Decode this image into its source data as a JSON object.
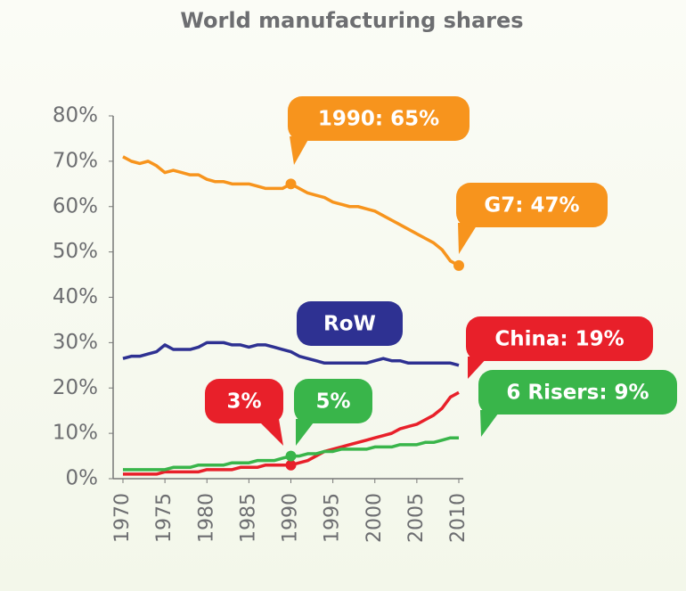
{
  "chart_data": {
    "type": "line",
    "title": "World manufacturing shares",
    "x": [
      1970,
      1971,
      1972,
      1973,
      1974,
      1975,
      1976,
      1977,
      1978,
      1979,
      1980,
      1981,
      1982,
      1983,
      1984,
      1985,
      1986,
      1987,
      1988,
      1989,
      1990,
      1991,
      1992,
      1993,
      1994,
      1995,
      1996,
      1997,
      1998,
      1999,
      2000,
      2001,
      2002,
      2003,
      2004,
      2005,
      2006,
      2007,
      2008,
      2009,
      2010
    ],
    "xlim": [
      1970,
      2010
    ],
    "xticks": [
      1970,
      1975,
      1980,
      1985,
      1990,
      1995,
      2000,
      2005,
      2010
    ],
    "ylim": [
      0,
      80
    ],
    "yticks": [
      {
        "value": 0,
        "label": "0%"
      },
      {
        "value": 10,
        "label": "10%"
      },
      {
        "value": 20,
        "label": "20%"
      },
      {
        "value": 30,
        "label": "30%"
      },
      {
        "value": 40,
        "label": "40%"
      },
      {
        "value": 50,
        "label": "50%"
      },
      {
        "value": 60,
        "label": "60%"
      },
      {
        "value": 70,
        "label": "70%"
      },
      {
        "value": 80,
        "label": "80%"
      }
    ],
    "grid": false,
    "series": [
      {
        "color": "#f7941d",
        "values": [
          71,
          70,
          69.5,
          70,
          69,
          67.5,
          68,
          67.5,
          67,
          67,
          66,
          65.5,
          65.5,
          65,
          65,
          65,
          64.5,
          64,
          64,
          64,
          65,
          64,
          63,
          62.5,
          62,
          61,
          60.5,
          60,
          60,
          59.5,
          59,
          58,
          57,
          56,
          55,
          54,
          53,
          52,
          50.5,
          48,
          47
        ]
      },
      {
        "color": "#2e3192",
        "values": [
          26.5,
          27,
          27,
          27.5,
          28,
          29.5,
          28.5,
          28.5,
          28.5,
          29,
          30,
          30,
          30,
          29.5,
          29.5,
          29,
          29.5,
          29.5,
          29,
          28.5,
          28,
          27,
          26.5,
          26,
          25.5,
          25.5,
          25.5,
          25.5,
          25.5,
          25.5,
          26,
          26.5,
          26,
          26,
          25.5,
          25.5,
          25.5,
          25.5,
          25.5,
          25.5,
          25
        ]
      },
      {
        "color": "#e8202a",
        "values": [
          1,
          1,
          1,
          1,
          1,
          1.5,
          1.5,
          1.5,
          1.5,
          1.5,
          2,
          2,
          2,
          2,
          2.5,
          2.5,
          2.5,
          3,
          3,
          3,
          3,
          3.5,
          4,
          5,
          6,
          6.5,
          7,
          7.5,
          8,
          8.5,
          9,
          9.5,
          10,
          11,
          11.5,
          12,
          13,
          14,
          15.5,
          18,
          19
        ]
      },
      {
        "color": "#39b54a",
        "values": [
          2,
          2,
          2,
          2,
          2,
          2,
          2.5,
          2.5,
          2.5,
          3,
          3,
          3,
          3,
          3.5,
          3.5,
          3.5,
          4,
          4,
          4,
          4.5,
          5,
          5,
          5.5,
          5.5,
          6,
          6,
          6.5,
          6.5,
          6.5,
          6.5,
          7,
          7,
          7,
          7.5,
          7.5,
          7.5,
          8,
          8,
          8.5,
          9,
          9
        ]
      }
    ],
    "annotations": [
      {
        "label": "1990: 65%",
        "x": 1990,
        "y": 65,
        "color": "#f7941d"
      },
      {
        "label": "G7: 47%",
        "x": 2010,
        "y": 47,
        "color": "#f7941d"
      },
      {
        "label": "RoW",
        "color": "#2e3192"
      },
      {
        "label": "China: 19%",
        "color": "#e8202a"
      },
      {
        "label": "3%",
        "x": 1990,
        "y": 3,
        "color": "#e8202a"
      },
      {
        "label": "5%",
        "x": 1990,
        "y": 5,
        "color": "#39b54a"
      },
      {
        "label": "6 Risers: 9%",
        "color": "#39b54a"
      }
    ]
  }
}
